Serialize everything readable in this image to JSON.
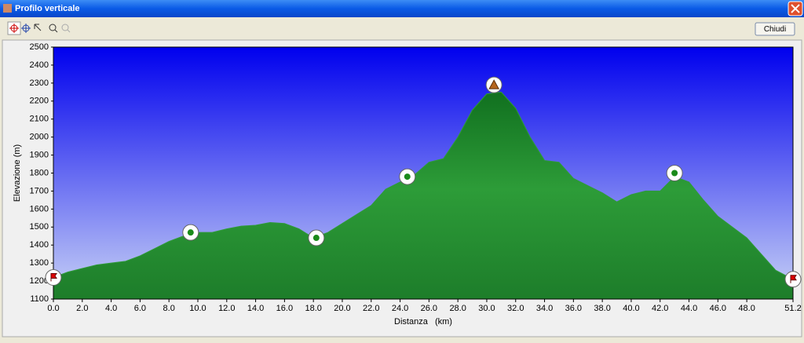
{
  "window": {
    "title": "Profilo verticale"
  },
  "toolbar": {
    "close_button": "Chiudi"
  },
  "chart_data": {
    "type": "area",
    "xlabel": "Distanza   (km)",
    "ylabel": "Elevazione (m)",
    "x": [
      0,
      1,
      2,
      3,
      4,
      5,
      6,
      7,
      8,
      9,
      10,
      11,
      12,
      13,
      14,
      15,
      16,
      17,
      18,
      19,
      20,
      21,
      22,
      23,
      24,
      25,
      26,
      27,
      28,
      29,
      30,
      31,
      32,
      33,
      34,
      35,
      36,
      37,
      38,
      39,
      40,
      41,
      42,
      43,
      44,
      45,
      46,
      47,
      48,
      49,
      50,
      51.2
    ],
    "values": [
      1220,
      1250,
      1270,
      1290,
      1300,
      1310,
      1340,
      1380,
      1420,
      1450,
      1470,
      1470,
      1490,
      1505,
      1510,
      1525,
      1520,
      1490,
      1440,
      1470,
      1520,
      1570,
      1620,
      1710,
      1750,
      1790,
      1860,
      1880,
      2000,
      2150,
      2240,
      2250,
      2160,
      2000,
      1870,
      1860,
      1770,
      1730,
      1690,
      1640,
      1680,
      1700,
      1700,
      1780,
      1750,
      1650,
      1560,
      1500,
      1440,
      1350,
      1260,
      1210
    ],
    "color": "#2f9a38",
    "xlim": [
      0,
      51.2
    ],
    "ylim": [
      1100,
      2500
    ],
    "xticks": [
      {
        "value": 0,
        "label": "0.0"
      },
      {
        "value": 2,
        "label": "2.0"
      },
      {
        "value": 4,
        "label": "4.0"
      },
      {
        "value": 6,
        "label": "6.0"
      },
      {
        "value": 8,
        "label": "8.0"
      },
      {
        "value": 10,
        "label": "10.0"
      },
      {
        "value": 12,
        "label": "12.0"
      },
      {
        "value": 14,
        "label": "14.0"
      },
      {
        "value": 16,
        "label": "16.0"
      },
      {
        "value": 18,
        "label": "18.0"
      },
      {
        "value": 20,
        "label": "20.0"
      },
      {
        "value": 22,
        "label": "22.0"
      },
      {
        "value": 24,
        "label": "24.0"
      },
      {
        "value": 26,
        "label": "26.0"
      },
      {
        "value": 28,
        "label": "28.0"
      },
      {
        "value": 30,
        "label": "30.0"
      },
      {
        "value": 32,
        "label": "32.0"
      },
      {
        "value": 34,
        "label": "34.0"
      },
      {
        "value": 36,
        "label": "36.0"
      },
      {
        "value": 38,
        "label": "38.0"
      },
      {
        "value": 40,
        "label": "40.0"
      },
      {
        "value": 42,
        "label": "42.0"
      },
      {
        "value": 44,
        "label": "44.0"
      },
      {
        "value": 46,
        "label": "46.0"
      },
      {
        "value": 48,
        "label": "48.0"
      },
      {
        "value": 51.2,
        "label": "51.2"
      }
    ],
    "yticks": [
      1100,
      1200,
      1300,
      1400,
      1500,
      1600,
      1700,
      1800,
      1900,
      2000,
      2100,
      2200,
      2300,
      2400,
      2500
    ],
    "waypoints": [
      {
        "x": 0,
        "y": 1220,
        "icon": "flag"
      },
      {
        "x": 9.5,
        "y": 1470,
        "icon": "dot"
      },
      {
        "x": 18.2,
        "y": 1440,
        "icon": "dot"
      },
      {
        "x": 24.5,
        "y": 1780,
        "icon": "dot"
      },
      {
        "x": 30.5,
        "y": 2290,
        "icon": "summit"
      },
      {
        "x": 43,
        "y": 1800,
        "icon": "dot"
      },
      {
        "x": 51.2,
        "y": 1210,
        "icon": "flag"
      }
    ]
  }
}
